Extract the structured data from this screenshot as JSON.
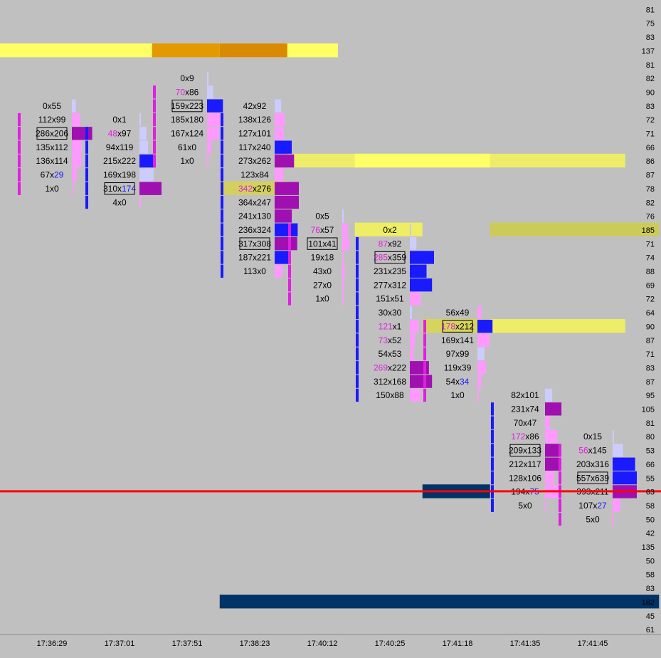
{
  "chart_data": {
    "type": "footprint",
    "x_ticks": [
      "17:36:29",
      "17:37:01",
      "17:37:51",
      "17:38:23",
      "17:40:12",
      "17:40:25",
      "17:41:18",
      "17:41:35",
      "17:41:45"
    ],
    "right_scale": [
      "81",
      "75",
      "83",
      "137",
      "81",
      "82",
      "90",
      "83",
      "72",
      "71",
      "66",
      "86",
      "87",
      "78",
      "82",
      "76",
      "185",
      "71",
      "74",
      "88",
      "69",
      "72",
      "64",
      "90",
      "87",
      "71",
      "83",
      "87",
      "95",
      "105",
      "81",
      "80",
      "53",
      "66",
      "55",
      "63",
      "58",
      "50",
      "42",
      "135",
      "50",
      "58",
      "83",
      "182",
      "45",
      "61"
    ],
    "columns": [
      {
        "time": "17:36:29",
        "cells": [
          {
            "row": 7,
            "bid": "0",
            "ask": "55"
          },
          {
            "row": 8,
            "bid": "112",
            "ask": "99"
          },
          {
            "row": 9,
            "bid": "286",
            "ask": "206",
            "poc": true
          },
          {
            "row": 10,
            "bid": "135",
            "ask": "112"
          },
          {
            "row": 11,
            "bid": "136",
            "ask": "114"
          },
          {
            "row": 12,
            "bid": "67",
            "ask": "29",
            "askColor": "blue"
          },
          {
            "row": 13,
            "bid": "1",
            "ask": "0"
          }
        ]
      },
      {
        "time": "17:37:01",
        "cells": [
          {
            "row": 8,
            "bid": "0",
            "ask": "1"
          },
          {
            "row": 9,
            "bid": "48",
            "ask": "97",
            "bidColor": "magenta"
          },
          {
            "row": 10,
            "bid": "94",
            "ask": "119"
          },
          {
            "row": 11,
            "bid": "215",
            "ask": "222"
          },
          {
            "row": 12,
            "bid": "169",
            "ask": "198"
          },
          {
            "row": 13,
            "bid": "310",
            "ask": "174",
            "poc": true,
            "askColor": "blue"
          },
          {
            "row": 14,
            "bid": "4",
            "ask": "0"
          }
        ]
      },
      {
        "time": "17:37:51",
        "cells": [
          {
            "row": 5,
            "bid": "0",
            "ask": "9"
          },
          {
            "row": 6,
            "bid": "70",
            "ask": "86",
            "bidColor": "magenta"
          },
          {
            "row": 7,
            "bid": "159",
            "ask": "223",
            "poc": true
          },
          {
            "row": 8,
            "bid": "185",
            "ask": "180"
          },
          {
            "row": 9,
            "bid": "167",
            "ask": "124"
          },
          {
            "row": 10,
            "bid": "61",
            "ask": "0"
          },
          {
            "row": 11,
            "bid": "1",
            "ask": "0"
          }
        ]
      },
      {
        "time": "17:38:23",
        "cells": [
          {
            "row": 7,
            "bid": "42",
            "ask": "92"
          },
          {
            "row": 8,
            "bid": "138",
            "ask": "126"
          },
          {
            "row": 9,
            "bid": "127",
            "ask": "101"
          },
          {
            "row": 10,
            "bid": "117",
            "ask": "240"
          },
          {
            "row": 11,
            "bid": "273",
            "ask": "262"
          },
          {
            "row": 12,
            "bid": "123",
            "ask": "84"
          },
          {
            "row": 13,
            "bid": "342",
            "ask": "276",
            "bidColor": "magenta"
          },
          {
            "row": 14,
            "bid": "364",
            "ask": "247"
          },
          {
            "row": 15,
            "bid": "241",
            "ask": "130"
          },
          {
            "row": 16,
            "bid": "236",
            "ask": "324"
          },
          {
            "row": 17,
            "bid": "317",
            "ask": "308",
            "poc": true
          },
          {
            "row": 18,
            "bid": "187",
            "ask": "221"
          },
          {
            "row": 19,
            "bid": "113",
            "ask": "0"
          }
        ]
      },
      {
        "time": "17:40:12",
        "cells": [
          {
            "row": 15,
            "bid": "0",
            "ask": "5"
          },
          {
            "row": 16,
            "bid": "76",
            "ask": "57",
            "bidColor": "magenta"
          },
          {
            "row": 17,
            "bid": "101",
            "ask": "41",
            "poc": true
          },
          {
            "row": 18,
            "bid": "19",
            "ask": "18"
          },
          {
            "row": 19,
            "bid": "43",
            "ask": "0"
          },
          {
            "row": 20,
            "bid": "27",
            "ask": "0"
          },
          {
            "row": 21,
            "bid": "1",
            "ask": "0"
          }
        ]
      },
      {
        "time": "17:40:25",
        "cells": [
          {
            "row": 16,
            "bid": "0",
            "ask": "2"
          },
          {
            "row": 17,
            "bid": "87",
            "ask": "92",
            "bidColor": "magenta"
          },
          {
            "row": 18,
            "bid": "285",
            "ask": "359",
            "poc": true,
            "bidColor": "magenta"
          },
          {
            "row": 19,
            "bid": "231",
            "ask": "235"
          },
          {
            "row": 20,
            "bid": "277",
            "ask": "312"
          },
          {
            "row": 21,
            "bid": "151",
            "ask": "51"
          },
          {
            "row": 22,
            "bid": "30",
            "ask": "30"
          },
          {
            "row": 23,
            "bid": "121",
            "ask": "1",
            "bidColor": "magenta"
          },
          {
            "row": 24,
            "bid": "73",
            "ask": "52",
            "bidColor": "magenta"
          },
          {
            "row": 25,
            "bid": "54",
            "ask": "53"
          },
          {
            "row": 26,
            "bid": "269",
            "ask": "222",
            "bidColor": "magenta"
          },
          {
            "row": 27,
            "bid": "312",
            "ask": "168"
          },
          {
            "row": 28,
            "bid": "150",
            "ask": "88"
          }
        ]
      },
      {
        "time": "17:41:18",
        "cells": [
          {
            "row": 22,
            "bid": "56",
            "ask": "49"
          },
          {
            "row": 23,
            "bid": "178",
            "ask": "212",
            "poc": true,
            "bidColor": "magenta"
          },
          {
            "row": 24,
            "bid": "169",
            "ask": "141"
          },
          {
            "row": 25,
            "bid": "97",
            "ask": "99"
          },
          {
            "row": 26,
            "bid": "119",
            "ask": "39"
          },
          {
            "row": 27,
            "bid": "54",
            "ask": "34",
            "askColor": "blue"
          },
          {
            "row": 28,
            "bid": "1",
            "ask": "0"
          }
        ]
      },
      {
        "time": "17:41:35",
        "cells": [
          {
            "row": 28,
            "bid": "82",
            "ask": "101"
          },
          {
            "row": 29,
            "bid": "231",
            "ask": "74"
          },
          {
            "row": 30,
            "bid": "70",
            "ask": "47"
          },
          {
            "row": 31,
            "bid": "172",
            "ask": "86",
            "bidColor": "magenta"
          },
          {
            "row": 32,
            "bid": "209",
            "ask": "133",
            "poc": true
          },
          {
            "row": 33,
            "bid": "212",
            "ask": "117"
          },
          {
            "row": 34,
            "bid": "128",
            "ask": "106"
          },
          {
            "row": 35,
            "bid": "194",
            "ask": "75",
            "askColor": "blue"
          },
          {
            "row": 36,
            "bid": "5",
            "ask": "0"
          }
        ]
      },
      {
        "time": "17:41:45",
        "cells": [
          {
            "row": 31,
            "bid": "0",
            "ask": "15"
          },
          {
            "row": 32,
            "bid": "56",
            "ask": "145",
            "bidColor": "magenta"
          },
          {
            "row": 33,
            "bid": "203",
            "ask": "316"
          },
          {
            "row": 34,
            "bid": "557",
            "ask": "639",
            "poc": true
          },
          {
            "row": 35,
            "bid": "393",
            "ask": "211"
          },
          {
            "row": 36,
            "bid": "107",
            "ask": "27",
            "askColor": "blue"
          },
          {
            "row": 37,
            "bid": "5",
            "ask": "0"
          }
        ]
      }
    ],
    "zones": [
      {
        "row": 3,
        "from": 0,
        "to": 5,
        "color": "#ffff66",
        "cols": [
          {
            "from": 2.25,
            "to": 3.25,
            "color": "#e39a00"
          },
          {
            "from": 3.25,
            "to": 4.25,
            "color": "#d98a00"
          }
        ]
      },
      {
        "row": 11,
        "from": 4.25,
        "to": 9.25,
        "color": "#eded6a",
        "cols": [
          {
            "from": 5.25,
            "to": 7.25,
            "color": "#ffff66"
          }
        ]
      },
      {
        "row": 13,
        "from": 3.25,
        "to": 4.25,
        "color": "#d4d060"
      },
      {
        "row": 16,
        "from": 5.25,
        "to": 6.25,
        "color": "#eded66"
      },
      {
        "row": 16,
        "from": 7.25,
        "to": 9.75,
        "color": "#cccb5a"
      },
      {
        "row": 23,
        "from": 6.25,
        "to": 9.25,
        "color": "#eded6a",
        "cols": [
          {
            "from": 6.25,
            "to": 7.25,
            "color": "#d6d45c"
          }
        ]
      },
      {
        "row": 35,
        "from": 6.25,
        "to": 7.25,
        "color": "#003366"
      },
      {
        "row": 43,
        "from": 3.25,
        "to": 9.75,
        "color": "#003366"
      }
    ],
    "price_line_row": 35,
    "price_line_color": "#ff0000",
    "colors": {
      "background": "#c0c0c0",
      "magenta": "#e020e0",
      "blue": "#1a1aff",
      "poc_border": "#000000"
    }
  }
}
